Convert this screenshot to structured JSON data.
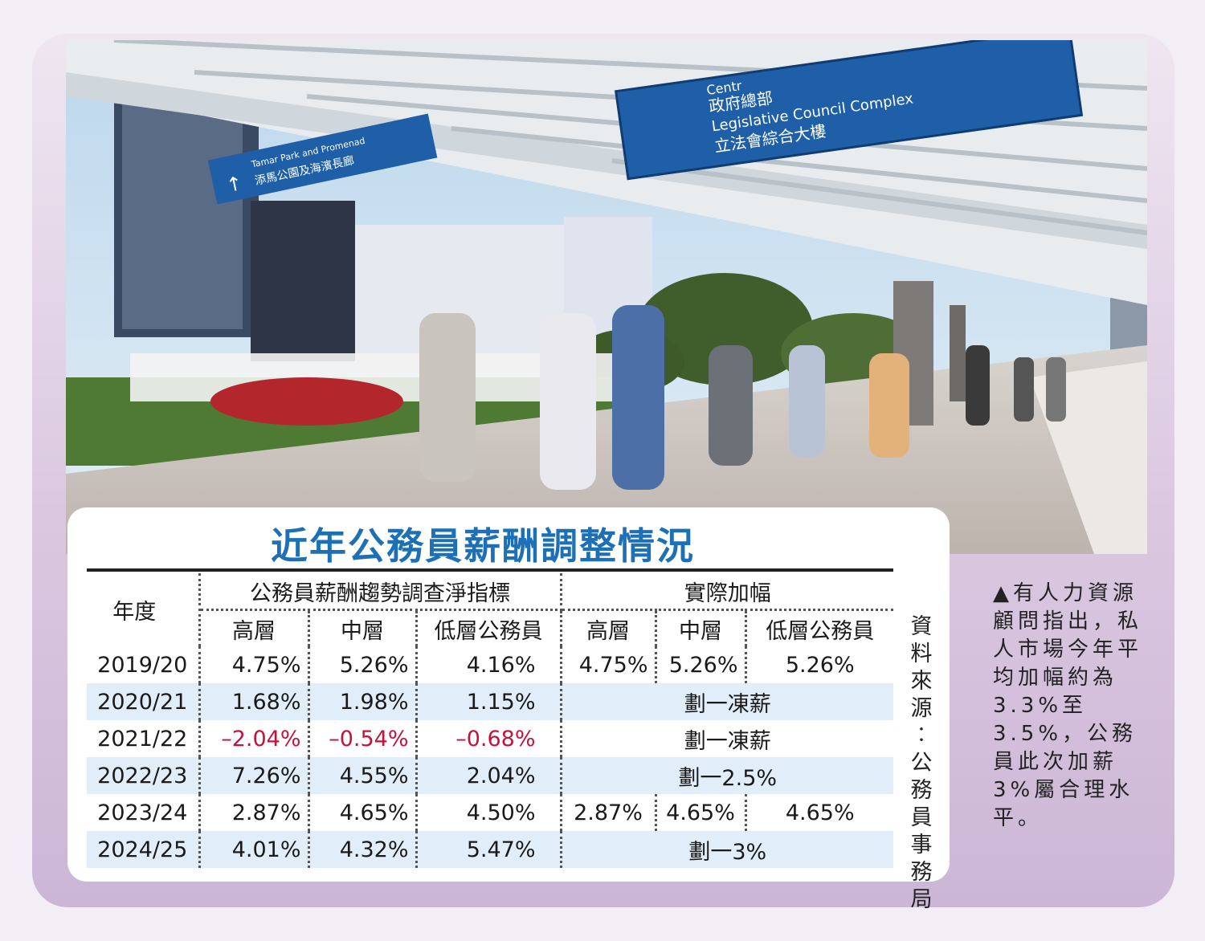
{
  "photo": {
    "sign_main_lines": [
      "Centr",
      "政府總部",
      "Legislative Council Complex",
      "立法會綜合大樓"
    ],
    "sign_left_lines": [
      "Tamar Park and Promenad",
      "添馬公園及海濱長廊"
    ],
    "sign_left_arrow": "↑"
  },
  "table_title": "近年公務員薪酬調整情況",
  "headers": {
    "year": "年度",
    "group1": "公務員薪酬趨勢調查淨指標",
    "group2": "實際加幅",
    "senior": "高層",
    "middle": "中層",
    "lower": "低層公務員"
  },
  "rows": [
    {
      "year": "2019/20",
      "idx": [
        "4.75%",
        "5.26%",
        "4.16%"
      ],
      "actual": [
        "4.75%",
        "5.26%",
        "5.26%"
      ]
    },
    {
      "year": "2020/21",
      "idx": [
        "1.68%",
        "1.98%",
        "1.15%"
      ],
      "merged": "劃一凍薪"
    },
    {
      "year": "2021/22",
      "idx": [
        "–2.04%",
        "–0.54%",
        "–0.68%"
      ],
      "merged": "劃一凍薪"
    },
    {
      "year": "2022/23",
      "idx": [
        "7.26%",
        "4.55%",
        "2.04%"
      ],
      "merged": "劃一2.5%"
    },
    {
      "year": "2023/24",
      "idx": [
        "2.87%",
        "4.65%",
        "4.50%"
      ],
      "actual": [
        "2.87%",
        "4.65%",
        "4.65%"
      ]
    },
    {
      "year": "2024/25",
      "idx": [
        "4.01%",
        "4.32%",
        "5.47%"
      ],
      "merged": "劃一3%"
    }
  ],
  "source": "資料來源：公務員事務局",
  "caption": "▲有人力資源顧問指出，私人市場今年平均加幅約為3.3%至3.5%，公務員此次加薪3%屬合理水平。",
  "colors": {
    "title": "#1d6fb6",
    "negative": "#c4123a",
    "row_shade": "#e1edf8",
    "sign_blue": "#1e5fa8"
  }
}
